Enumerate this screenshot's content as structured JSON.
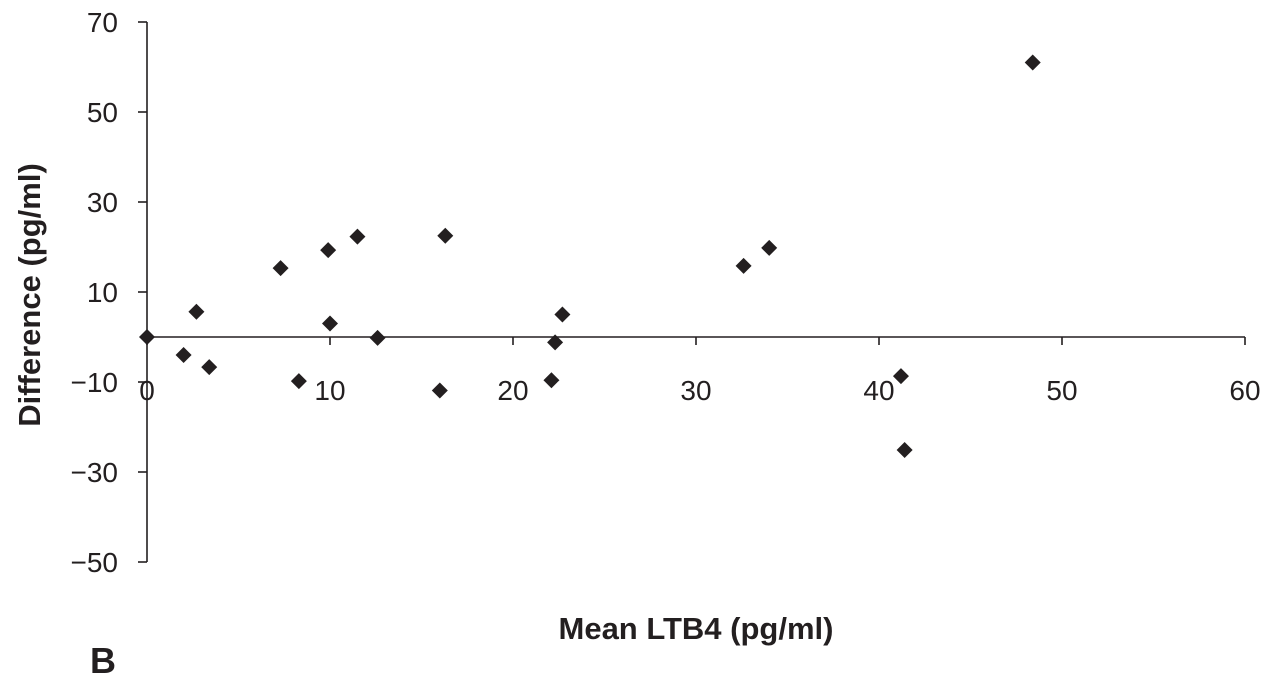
{
  "chart_data": {
    "type": "scatter",
    "xlabel": "Mean LTB4 (pg/ml)",
    "ylabel": "Difference (pg/ml)",
    "panel_label": "B",
    "xlim": [
      0,
      60
    ],
    "ylim": [
      -50,
      70
    ],
    "x_ticks": [
      0,
      10,
      20,
      30,
      40,
      50,
      60
    ],
    "y_ticks": [
      -50,
      -30,
      -10,
      10,
      30,
      50,
      70
    ],
    "x_tick_labels": [
      "0",
      "10",
      "20",
      "30",
      "40",
      "50",
      "60"
    ],
    "y_tick_labels": [
      "−50",
      "−30",
      "−10",
      "10",
      "30",
      "50",
      "70"
    ],
    "x_axis_crosses_y_at": 0,
    "marker": "diamond",
    "marker_color": "#231f20",
    "grid": false,
    "legend": "none",
    "points": [
      {
        "x": 0.0,
        "y": 0.0
      },
      {
        "x": 2.0,
        "y": -4.0
      },
      {
        "x": 2.7,
        "y": 5.6
      },
      {
        "x": 3.4,
        "y": -6.7
      },
      {
        "x": 7.3,
        "y": 15.3
      },
      {
        "x": 8.3,
        "y": -9.8
      },
      {
        "x": 9.9,
        "y": 19.3
      },
      {
        "x": 10.0,
        "y": 3.0
      },
      {
        "x": 11.5,
        "y": 22.3
      },
      {
        "x": 12.6,
        "y": -0.2
      },
      {
        "x": 16.0,
        "y": -11.9
      },
      {
        "x": 16.3,
        "y": 22.5
      },
      {
        "x": 22.1,
        "y": -9.6
      },
      {
        "x": 22.3,
        "y": -1.2
      },
      {
        "x": 22.7,
        "y": 5.0
      },
      {
        "x": 32.6,
        "y": 15.8
      },
      {
        "x": 34.0,
        "y": 19.8
      },
      {
        "x": 41.2,
        "y": -8.7
      },
      {
        "x": 41.4,
        "y": -25.1
      },
      {
        "x": 48.4,
        "y": 61.0
      }
    ]
  }
}
